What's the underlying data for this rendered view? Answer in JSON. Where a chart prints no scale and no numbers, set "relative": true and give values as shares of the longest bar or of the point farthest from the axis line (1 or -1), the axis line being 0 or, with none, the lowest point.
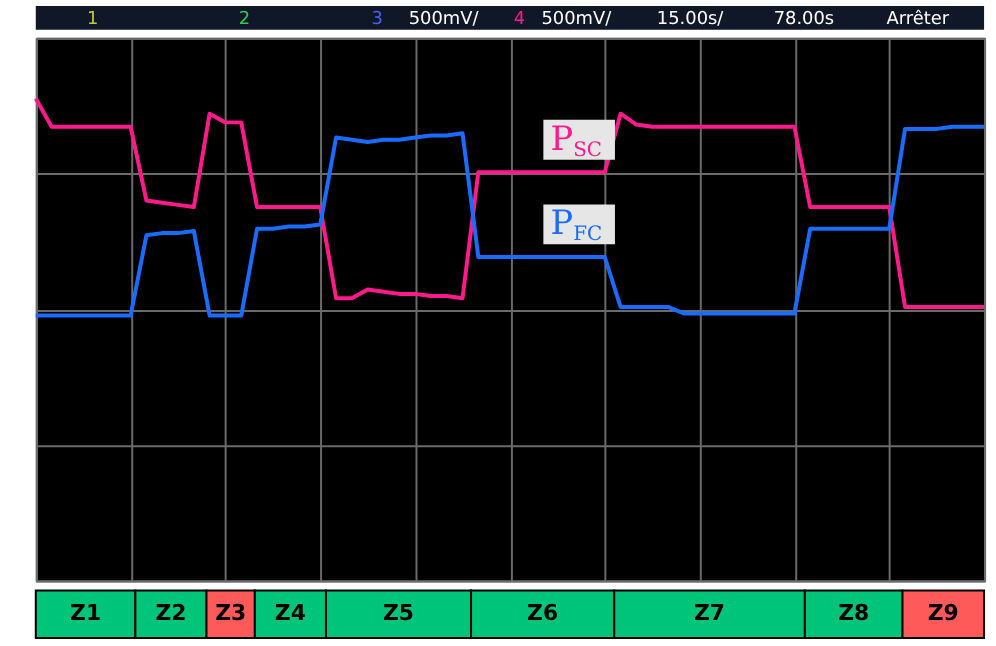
{
  "chart_data": [
    {
      "type": "line",
      "relative": true,
      "grid": true,
      "tick_labels": false,
      "categories": [
        null,
        null,
        null,
        null,
        null,
        null,
        null,
        null,
        null,
        null,
        null,
        null,
        null,
        null,
        null,
        null,
        null,
        null,
        null,
        null,
        null,
        null,
        null,
        null,
        null,
        null,
        null,
        null,
        null,
        null,
        null,
        null,
        null,
        null,
        null,
        null,
        null,
        null,
        null,
        null,
        null,
        null,
        null,
        null,
        null,
        null,
        null,
        null,
        null,
        null,
        null,
        null,
        null,
        null,
        null,
        null,
        null,
        null,
        null,
        null,
        null
      ],
      "series": [
        {
          "name": "P$_{SC}$",
          "color": "#ff1a8c",
          "values": [
            1.0,
            0.87,
            0.87,
            0.87,
            0.87,
            0.87,
            0.87,
            0.53,
            0.52,
            0.51,
            0.5,
            0.93,
            0.89,
            0.89,
            0.5,
            0.5,
            0.5,
            0.5,
            0.5,
            0.08,
            0.08,
            0.12,
            0.11,
            0.1,
            0.1,
            0.09,
            0.09,
            0.08,
            0.66,
            0.66,
            0.66,
            0.66,
            0.66,
            0.66,
            0.66,
            0.66,
            0.66,
            0.93,
            0.88,
            0.87,
            0.87,
            0.87,
            0.87,
            0.87,
            0.87,
            0.87,
            0.87,
            0.87,
            0.87,
            0.5,
            0.5,
            0.5,
            0.5,
            0.5,
            0.5,
            0.04,
            0.04,
            0.04,
            0.04,
            0.04,
            0.04
          ]
        },
        {
          "name": "P$_{FC}$",
          "color": "#1a6cff",
          "values": [
            0,
            0,
            0,
            0,
            0,
            0,
            0,
            0.37,
            0.38,
            0.38,
            0.39,
            0,
            0,
            0,
            0.4,
            0.4,
            0.41,
            0.41,
            0.42,
            0.82,
            0.81,
            0.8,
            0.81,
            0.81,
            0.82,
            0.83,
            0.83,
            0.84,
            0.27,
            0.27,
            0.27,
            0.27,
            0.27,
            0.27,
            0.27,
            0.27,
            0.27,
            0.04,
            0.04,
            0.04,
            0.04,
            0.01,
            0.01,
            0.01,
            0.01,
            0.01,
            0.01,
            0.01,
            0.01,
            0.4,
            0.4,
            0.4,
            0.4,
            0.4,
            0.4,
            0.86,
            0.86,
            0.86,
            0.87,
            0.87,
            0.87
          ]
        }
      ],
      "annotations": [
        "1",
        "2",
        "3",
        "500mV/",
        "4",
        "500mV/",
        "15.00s/",
        "78.00s",
        "Arrêter"
      ]
    },
    {
      "type": "bar",
      "orientation": "horizontal",
      "stacked": true,
      "relative": true,
      "categories": [
        null
      ],
      "series": [
        {
          "name": "Z1",
          "color": "#00c47a",
          "values": [
            0.105
          ]
        },
        {
          "name": "Z2",
          "color": "#00c47a",
          "values": [
            0.075
          ]
        },
        {
          "name": "Z3",
          "color": "#ff5a5a",
          "values": [
            0.051
          ]
        },
        {
          "name": "Z4",
          "color": "#00c47a",
          "values": [
            0.075
          ]
        },
        {
          "name": "Z5",
          "color": "#00c47a",
          "values": [
            0.153
          ]
        },
        {
          "name": "Z6",
          "color": "#00c47a",
          "values": [
            0.151
          ]
        },
        {
          "name": "Z7",
          "color": "#00c47a",
          "values": [
            0.201
          ]
        },
        {
          "name": "Z8",
          "color": "#00c47a",
          "values": [
            0.103
          ]
        },
        {
          "name": "Z9",
          "color": "#ff5a5a",
          "values": [
            0.086
          ]
        }
      ]
    }
  ]
}
